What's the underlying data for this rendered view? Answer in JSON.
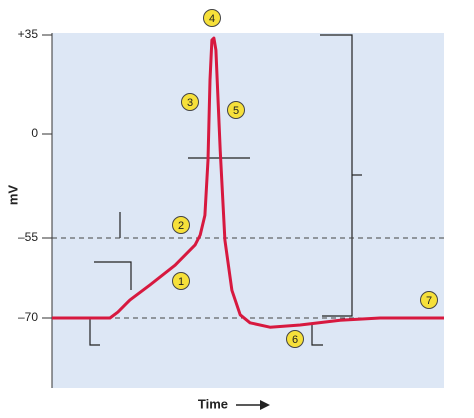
{
  "chart_data": {
    "type": "line",
    "ylabel": "mV",
    "xlabel": "Time",
    "x": [
      0,
      14.8,
      16.8,
      19.9,
      25,
      31.4,
      36.5,
      37.8,
      39,
      39.8,
      40.3,
      40.8,
      41.3,
      41.8,
      42.9,
      44.1,
      45.9,
      48,
      50.5,
      55.6,
      63.3,
      73.5,
      83.7,
      100
    ],
    "series": [
      {
        "color": "#d7193f",
        "values": [
          -70,
          -70,
          -68.9,
          -66.6,
          -63.8,
          -60.1,
          -56.3,
          -53.4,
          -43,
          -13.8,
          19.1,
          33.2,
          33.9,
          29.7,
          -8.5,
          -55.4,
          -64.8,
          -69.4,
          -70.9,
          -71.7,
          -71.3,
          -70.4,
          -70,
          -70
        ]
      }
    ],
    "xlim": [
      0,
      100
    ],
    "ylim": [
      -83,
      36
    ],
    "yticks": [
      {
        "value": 35,
        "label": "+35"
      },
      0,
      {
        "value": -55,
        "label": "–55"
      },
      {
        "value": -70,
        "label": "–70"
      }
    ],
    "dashed_lines": [
      -55,
      -70
    ],
    "annotations": [
      "1",
      "2",
      "3",
      "4",
      "5",
      "6",
      "7"
    ]
  }
}
